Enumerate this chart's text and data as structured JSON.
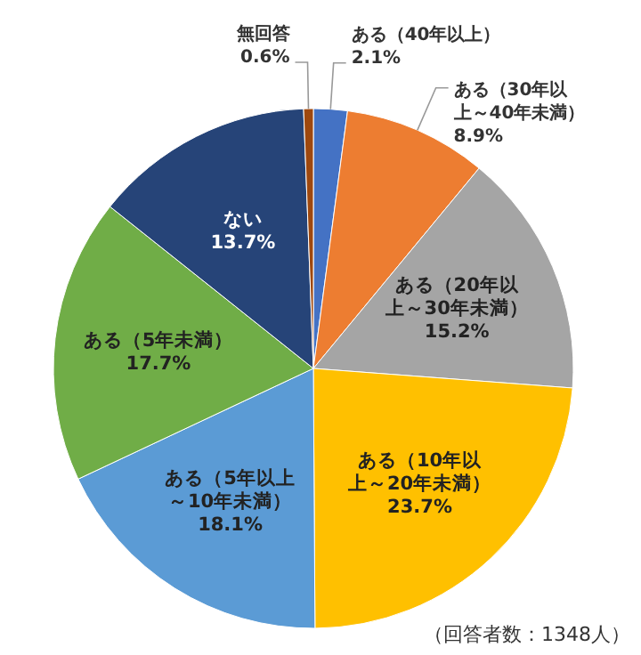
{
  "chart_data": {
    "type": "pie",
    "categories": [
      "ある（40年以上）",
      "ある（30年以上～40年未満）",
      "ある（20年以上～30年未満）",
      "ある（10年以上～20年未満）",
      "ある（5年以上～10年未満）",
      "ある（5年未満）",
      "ない",
      "無回答"
    ],
    "values": [
      2.1,
      8.9,
      15.2,
      23.7,
      18.1,
      17.7,
      13.7,
      0.6
    ],
    "colors": [
      "#4472c4",
      "#ed7d31",
      "#a5a5a5",
      "#ffc000",
      "#5b9bd5",
      "#70ad47",
      "#264478",
      "#9e480e"
    ],
    "value_labels": [
      "2.1%",
      "8.9%",
      "15.2%",
      "23.7%",
      "18.1%",
      "17.7%",
      "13.7%",
      "0.6%"
    ],
    "annotations": [
      "（回答者数：1348人）"
    ],
    "legend": false
  }
}
